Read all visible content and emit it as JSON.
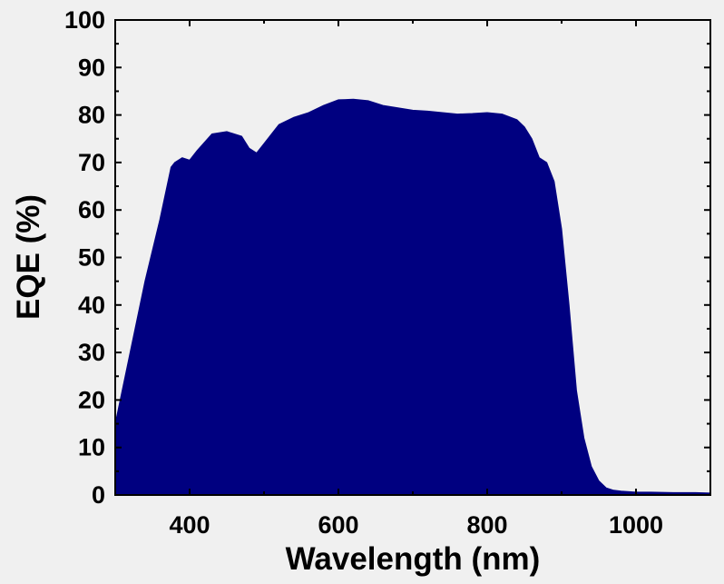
{
  "chart_data": {
    "type": "area",
    "xlabel": "Wavelength (nm)",
    "ylabel": "EQE (%)",
    "xlim": [
      300,
      1100
    ],
    "ylim": [
      0,
      100
    ],
    "x_ticks": [
      400,
      600,
      800,
      1000
    ],
    "y_ticks": [
      0,
      10,
      20,
      30,
      40,
      50,
      60,
      70,
      80,
      90,
      100
    ],
    "grid": false,
    "fill_color": "#000080",
    "background_color": "#f0f0f0",
    "x": [
      300,
      320,
      340,
      360,
      375,
      380,
      390,
      400,
      410,
      430,
      450,
      470,
      480,
      490,
      500,
      520,
      540,
      560,
      580,
      600,
      620,
      640,
      660,
      680,
      700,
      720,
      740,
      760,
      780,
      800,
      820,
      840,
      850,
      860,
      870,
      880,
      890,
      900,
      910,
      920,
      930,
      940,
      950,
      960,
      970,
      980,
      1000,
      1020,
      1050,
      1080,
      1100
    ],
    "y": [
      15,
      30,
      45,
      58,
      69,
      70,
      71,
      70.5,
      72.5,
      76,
      76.5,
      75.5,
      73,
      72,
      74,
      78,
      79.5,
      80.5,
      82,
      83.2,
      83.3,
      83,
      82,
      81.5,
      81,
      80.8,
      80.5,
      80.2,
      80.3,
      80.5,
      80.2,
      79,
      77.5,
      75,
      71,
      70,
      66,
      56,
      40,
      22,
      12,
      6,
      3,
      1.5,
      1,
      0.8,
      0.6,
      0.6,
      0.5,
      0.5,
      0.4
    ]
  }
}
